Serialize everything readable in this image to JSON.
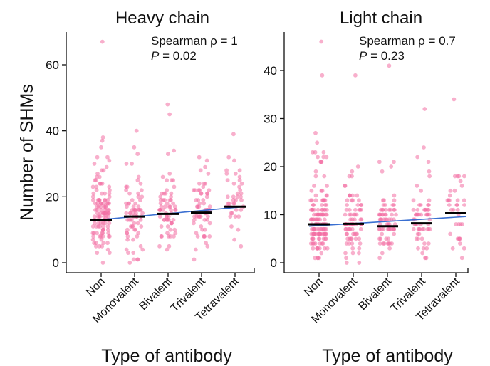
{
  "figure": {
    "ylabel": "Number of SHMs",
    "xlabel": "Type of antibody",
    "point_color": "#f26ea2",
    "median_color": "#000000",
    "trend_color": "#3a6fd1"
  },
  "chart_data": [
    {
      "type": "scatter",
      "title": "Heavy chain",
      "xlabel": "Type of antibody",
      "ylabel": "Number of SHMs",
      "categories": [
        "Non",
        "Monovalent",
        "Bivalent",
        "Trivalent",
        "Tetravalent"
      ],
      "ylim": [
        -2,
        70
      ],
      "yticks": [
        0,
        20,
        40,
        60
      ],
      "median_values": [
        13,
        14,
        14.8,
        15.2,
        17
      ],
      "trendline": [
        12.8,
        17
      ],
      "outliers": [
        [
          0,
          67
        ],
        [
          2,
          48
        ],
        [
          2,
          45
        ],
        [
          1,
          40
        ],
        [
          4,
          39
        ],
        [
          0,
          38
        ]
      ],
      "spread_max": [
        38,
        36,
        38,
        34,
        33
      ],
      "spearman_text": "Spearman ρ = 1",
      "p_label": "P",
      "p_value_text": " = 0.02",
      "grid": false,
      "legend": "none"
    },
    {
      "type": "scatter",
      "title": "Light chain",
      "xlabel": "Type of antibody",
      "ylabel": "",
      "categories": [
        "Non",
        "Monovalent",
        "Bivalent",
        "Trivalent",
        "Tetravalent"
      ],
      "ylim": [
        -1,
        48
      ],
      "yticks": [
        0,
        10,
        20,
        30,
        40
      ],
      "median_values": [
        8,
        8.1,
        7.6,
        8.2,
        10.3
      ],
      "trendline": [
        7.6,
        9.6
      ],
      "outliers": [
        [
          0,
          46
        ],
        [
          1,
          39
        ],
        [
          0,
          39
        ],
        [
          2,
          41
        ],
        [
          4,
          34
        ],
        [
          3,
          32
        ],
        [
          0,
          27
        ]
      ],
      "spread_max": [
        26,
        23,
        22,
        24,
        19
      ],
      "spearman_text": "Spearman ρ = 0.7",
      "p_label": "P",
      "p_value_text": " = 0.23",
      "grid": false,
      "legend": "none"
    }
  ]
}
